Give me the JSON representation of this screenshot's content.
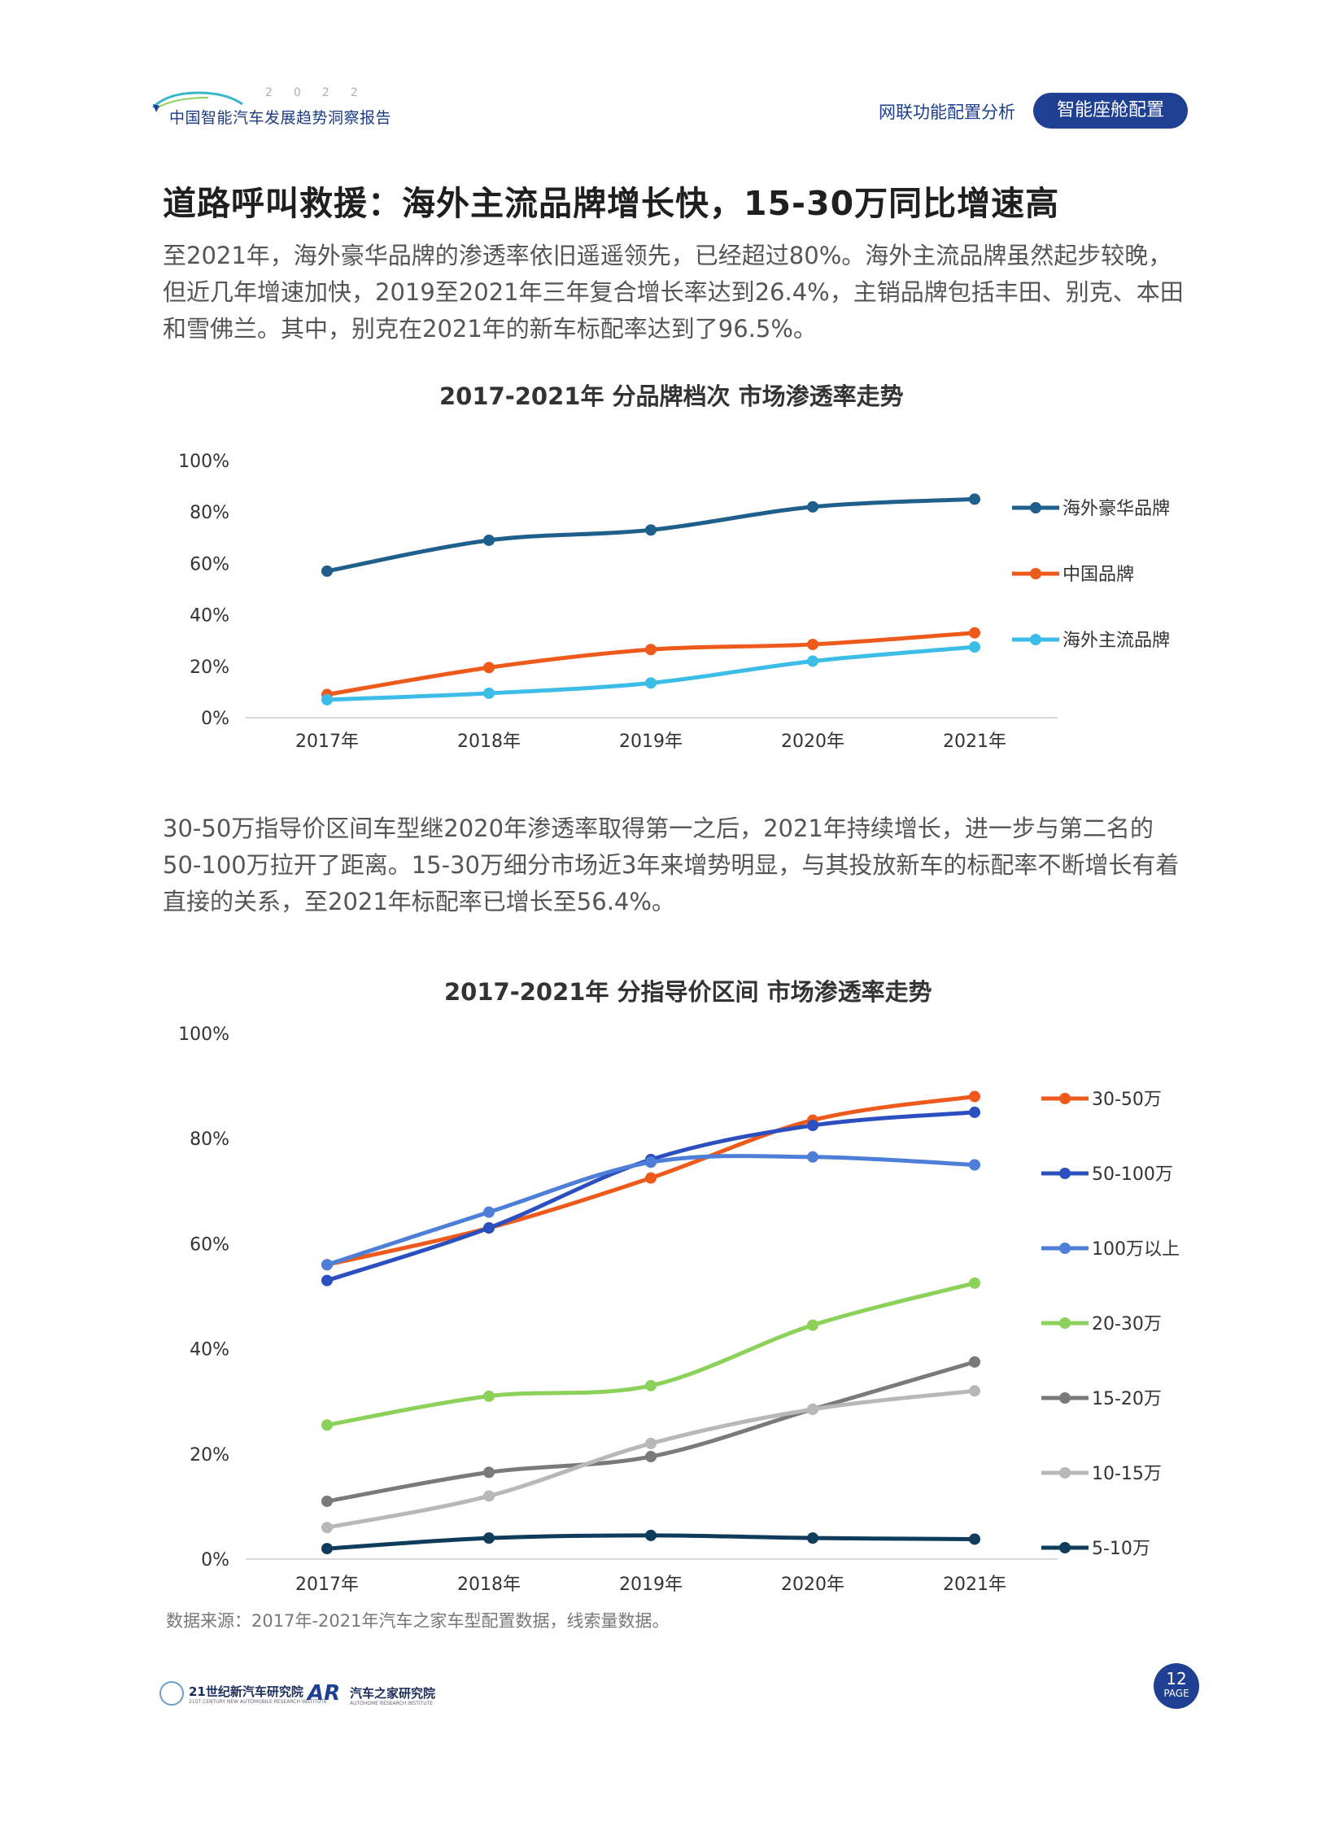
{
  "header": {
    "logo_year": "2022",
    "logo_name": "中国智能汽车发展趋势洞察报告",
    "nav_text": "网联功能配置分析",
    "active_section": "智能座舱配置"
  },
  "title": "道路呼叫救援：海外主流品牌增长快，15-30万同比增速高",
  "paragraph1": "至2021年，海外豪华品牌的渗透率依旧遥遥领先，已经超过80%。海外主流品牌虽然起步较晚，但近几年增速加快，2019至2021年三年复合增长率达到26.4%，主销品牌包括丰田、别克、本田和雪佛兰。其中，别克在2021年的新车标配率达到了96.5%。",
  "paragraph2": "30-50万指导价区间车型继2020年渗透率取得第一之后，2021年持续增长，进一步与第二名的50-100万拉开了距离。15-30万细分市场近3年来增势明显，与其投放新车的标配率不断增长有着直接的关系，至2021年标配率已增长至56.4%。",
  "source": "数据来源：2017年-2021年汽车之家车型配置数据，线索量数据。",
  "footer": {
    "org1_name": "21世纪新汽车研究院",
    "org1_sub": "21ST CENTURY NEW AUTOMOBILE RESEARCH INSTITUTE",
    "org2_mark": "AR",
    "org2_name": "汽车之家研究院",
    "org2_sub": "AUTOHOME RESEARCH INSTITUTE",
    "page_number": "12",
    "page_label": "PAGE"
  },
  "chart_data": [
    {
      "type": "line",
      "title": "2017-2021年 分品牌档次 市场渗透率走势",
      "xlabel": "",
      "ylabel": "",
      "categories": [
        "2017年",
        "2018年",
        "2019年",
        "2020年",
        "2021年"
      ],
      "ylim": [
        0,
        100
      ],
      "yticks": [
        "0%",
        "20%",
        "40%",
        "60%",
        "80%",
        "100%"
      ],
      "legend_position": "right",
      "series": [
        {
          "name": "海外豪华品牌",
          "color": "#1f5f8b",
          "values": [
            57,
            69,
            73,
            82,
            85
          ]
        },
        {
          "name": "中国品牌",
          "color": "#ee5a1c",
          "values": [
            9,
            19.5,
            26.5,
            28.5,
            33
          ]
        },
        {
          "name": "海外主流品牌",
          "color": "#3cbde8",
          "values": [
            7,
            9.5,
            13.5,
            22,
            27.5
          ]
        }
      ]
    },
    {
      "type": "line",
      "title": "2017-2021年 分指导价区间 市场渗透率走势",
      "xlabel": "",
      "ylabel": "",
      "categories": [
        "2017年",
        "2018年",
        "2019年",
        "2020年",
        "2021年"
      ],
      "ylim": [
        0,
        100
      ],
      "yticks": [
        "0%",
        "20%",
        "40%",
        "60%",
        "80%",
        "100%"
      ],
      "legend_position": "right",
      "series": [
        {
          "name": "30-50万",
          "color": "#ee5a1c",
          "values": [
            56,
            63,
            72.5,
            83.5,
            88
          ]
        },
        {
          "name": "50-100万",
          "color": "#2b4fbf",
          "values": [
            53,
            63,
            76,
            82.5,
            85
          ]
        },
        {
          "name": "100万以上",
          "color": "#4d7fd8",
          "values": [
            56,
            66,
            75.5,
            76.5,
            75
          ]
        },
        {
          "name": "20-30万",
          "color": "#8cd15a",
          "values": [
            25.5,
            31,
            33,
            44.5,
            52.5
          ]
        },
        {
          "name": "15-20万",
          "color": "#7a7a7a",
          "values": [
            11,
            16.5,
            19.5,
            28.5,
            37.5
          ]
        },
        {
          "name": "10-15万",
          "color": "#b8b8b8",
          "values": [
            6,
            12,
            22,
            28.5,
            32
          ]
        },
        {
          "name": "5-10万",
          "color": "#0f3c5a",
          "values": [
            2,
            4,
            4.5,
            4,
            3.8
          ]
        }
      ]
    }
  ]
}
